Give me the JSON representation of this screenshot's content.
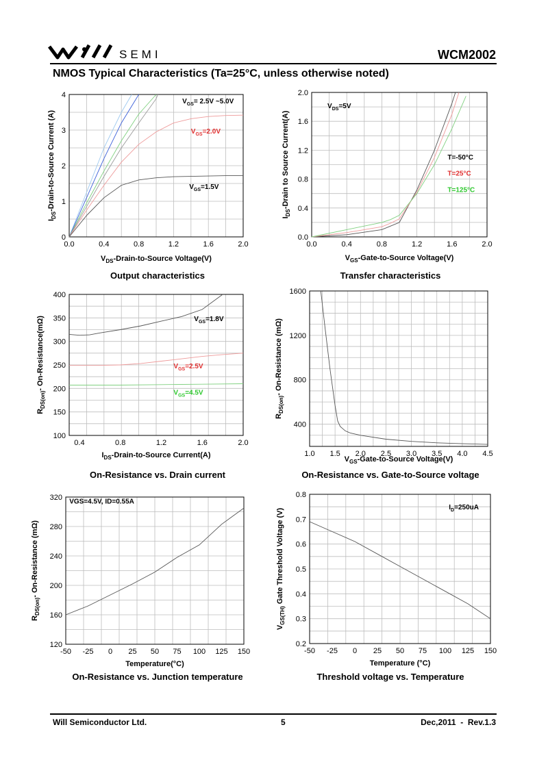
{
  "header": {
    "logo_text": "SEMI",
    "part_number": "WCM2002",
    "section_title": "NMOS Typical Characteristics (Ta=25°C, unless otherwise noted)"
  },
  "footer": {
    "company": "Will Semiconductor Ltd.",
    "page": "5",
    "date_rev": "Dec,2011  -  Rev.1.3"
  },
  "chart_data": [
    {
      "id": "c1",
      "type": "line",
      "title": "Output characteristics",
      "xlabel": "V_DS-Drain-to-Source Voltage(V)",
      "ylabel": "I_DS-Drain-to-Source Current (A)",
      "xlim": [
        0,
        2.0
      ],
      "ylim": [
        0,
        4
      ],
      "xticks": [
        0,
        0.4,
        0.8,
        1.2,
        1.6,
        2.0
      ],
      "xtick_labels": [
        "0.0",
        "0.4",
        "0.8",
        "1.2",
        "1.6",
        "2.0"
      ],
      "yticks": [
        0,
        1,
        2,
        3,
        4
      ],
      "ytick_labels": [
        "0",
        "1",
        "2",
        "3",
        "4"
      ],
      "grid_x": 10,
      "grid_y": 8,
      "series": [
        {
          "color": "#9ec9f0",
          "x": [
            0,
            0.2,
            0.4,
            0.6,
            0.72
          ],
          "y": [
            0,
            1.25,
            2.5,
            3.5,
            4.0
          ]
        },
        {
          "color": "#3a5fd9",
          "x": [
            0,
            0.2,
            0.4,
            0.6,
            0.8
          ],
          "y": [
            0,
            1.1,
            2.2,
            3.2,
            4.0
          ]
        },
        {
          "color": "#7fd07f",
          "x": [
            0,
            0.2,
            0.4,
            0.6,
            0.8,
            1.0
          ],
          "y": [
            0,
            0.95,
            1.85,
            2.7,
            3.45,
            4.0
          ]
        },
        {
          "color": "#9a9a9a",
          "x": [
            0,
            0.2,
            0.4,
            0.6,
            0.8,
            1.0,
            1.02
          ],
          "y": [
            0,
            0.85,
            1.7,
            2.5,
            3.2,
            3.88,
            4.0
          ]
        },
        {
          "color": "#ee9a9a",
          "x": [
            0,
            0.2,
            0.4,
            0.6,
            0.8,
            1.0,
            1.2,
            1.4,
            1.6,
            1.8,
            2.0
          ],
          "y": [
            0,
            0.75,
            1.45,
            2.1,
            2.6,
            2.95,
            3.2,
            3.32,
            3.38,
            3.41,
            3.42
          ]
        },
        {
          "color": "#555555",
          "x": [
            0,
            0.2,
            0.4,
            0.6,
            0.8,
            1.0,
            1.2,
            1.4,
            1.6,
            1.8,
            2.0
          ],
          "y": [
            0,
            0.6,
            1.1,
            1.45,
            1.6,
            1.66,
            1.69,
            1.7,
            1.71,
            1.72,
            1.72
          ]
        }
      ],
      "annotations": [
        {
          "prefix": "V",
          "sub": "GS",
          "suffix": "= 2.5V ~5.0V",
          "x": 1.3,
          "y": 3.75,
          "color": "#000000"
        },
        {
          "prefix": "V",
          "sub": "GS",
          "suffix": "=2.0V",
          "x": 1.4,
          "y": 2.9,
          "color": "#e03030"
        },
        {
          "prefix": "V",
          "sub": "GS",
          "suffix": "=1.5V",
          "x": 1.38,
          "y": 1.35,
          "color": "#000000"
        }
      ]
    },
    {
      "id": "c2",
      "type": "line",
      "title": "Transfer characteristics",
      "xlabel": "V_GS-Gate-to-Source Voltage(V)",
      "ylabel": "I_DS-Drain to Source Current(A)",
      "xlim": [
        0,
        2.0
      ],
      "ylim": [
        0,
        2.0
      ],
      "xticks": [
        0,
        0.4,
        0.8,
        1.2,
        1.6,
        2.0
      ],
      "xtick_labels": [
        "0.0",
        "0.4",
        "0.8",
        "1.2",
        "1.6",
        "2.0"
      ],
      "yticks": [
        0,
        0.4,
        0.8,
        1.2,
        1.6,
        2.0
      ],
      "ytick_labels": [
        "0.0",
        "0.4",
        "0.8",
        "1.2",
        "1.6",
        "2.0"
      ],
      "grid_x": 10,
      "grid_y": 10,
      "series": [
        {
          "name": "T=-50°C",
          "color": "#555555",
          "x": [
            0,
            0.4,
            0.8,
            0.9,
            1.0,
            1.2,
            1.4,
            1.6,
            1.64
          ],
          "y": [
            0,
            0.03,
            0.1,
            0.15,
            0.2,
            0.65,
            1.2,
            1.85,
            2.0
          ]
        },
        {
          "name": "T=25°C",
          "color": "#ee9a9a",
          "x": [
            0,
            0.4,
            0.8,
            0.9,
            1.0,
            1.2,
            1.4,
            1.6,
            1.68
          ],
          "y": [
            0,
            0.06,
            0.14,
            0.19,
            0.25,
            0.62,
            1.1,
            1.7,
            2.0
          ]
        },
        {
          "name": "T=125°C",
          "color": "#7fd07f",
          "x": [
            0,
            0.4,
            0.8,
            0.9,
            1.0,
            1.2,
            1.4,
            1.6,
            1.76
          ],
          "y": [
            0,
            0.1,
            0.2,
            0.24,
            0.3,
            0.6,
            1.0,
            1.5,
            1.95
          ]
        }
      ],
      "annotations": [
        {
          "prefix": "V",
          "sub": "DS",
          "suffix": "=5V",
          "x": 0.18,
          "y": 1.78,
          "color": "#000000"
        },
        {
          "prefix": "T=-50",
          "sub": "",
          "suffix": "°C",
          "x": 1.55,
          "y": 1.07,
          "color": "#000000"
        },
        {
          "prefix": "T=25",
          "sub": "",
          "suffix": "°C",
          "x": 1.55,
          "y": 0.85,
          "color": "#e03030"
        },
        {
          "prefix": "T=125",
          "sub": "",
          "suffix": "°C",
          "x": 1.55,
          "y": 0.62,
          "color": "#2ec82e"
        }
      ]
    },
    {
      "id": "c3",
      "type": "line",
      "title": "On-Resistance vs. Drain current",
      "xlabel": "I_DS-Drain-to-Source Current(A)",
      "ylabel": "R_DS(on)- On-Resistance(mΩ)",
      "xlim": [
        0.3,
        2.0
      ],
      "ylim": [
        100,
        400
      ],
      "xticks": [
        0.4,
        0.8,
        1.2,
        1.6,
        2.0
      ],
      "xtick_labels": [
        "0.4",
        "0.8",
        "1.2",
        "1.6",
        "2.0"
      ],
      "yticks": [
        100,
        150,
        200,
        250,
        300,
        350,
        400
      ],
      "ytick_labels": [
        "100",
        "150",
        "200",
        "250",
        "300",
        "350",
        "400"
      ],
      "grid_x": 10,
      "grid_y": 12,
      "series": [
        {
          "name": "V_GS=1.8V",
          "color": "#555555",
          "x": [
            0.3,
            0.4,
            0.5,
            0.6,
            0.8,
            1.0,
            1.2,
            1.4,
            1.6,
            1.8
          ],
          "y": [
            315,
            313,
            314,
            318,
            325,
            333,
            343,
            353,
            368,
            400
          ]
        },
        {
          "name": "V_GS=2.5V",
          "color": "#ee9a9a",
          "x": [
            0.3,
            0.6,
            0.8,
            1.0,
            1.2,
            1.4,
            1.6,
            1.8,
            2.0
          ],
          "y": [
            249,
            249,
            250,
            253,
            258,
            263,
            268,
            272,
            275
          ]
        },
        {
          "name": "V_GS=4.5V",
          "color": "#7fd07f",
          "x": [
            0.3,
            0.8,
            1.2,
            1.6,
            2.0
          ],
          "y": [
            207,
            207,
            208,
            209,
            210
          ]
        }
      ],
      "annotations": [
        {
          "prefix": "V",
          "sub": "GS",
          "suffix": "=1.8V",
          "x": 1.52,
          "y": 343,
          "color": "#000000"
        },
        {
          "prefix": "V",
          "sub": "GS",
          "suffix": "=2.5V",
          "x": 1.32,
          "y": 243,
          "color": "#e03030"
        },
        {
          "prefix": "V",
          "sub": "GS",
          "suffix": "=4.5V",
          "x": 1.32,
          "y": 187,
          "color": "#2ec82e"
        }
      ]
    },
    {
      "id": "c4",
      "type": "line",
      "title": "On-Resistance vs. Gate-to-Source voltage",
      "xlabel": "V_GS-Gate-to-Source Voltage(V)",
      "ylabel": "R_DS(on)- On-Resistance (mΩ)",
      "xlim": [
        1.0,
        4.5
      ],
      "ylim": [
        200,
        1600
      ],
      "xticks": [
        1.0,
        1.5,
        2.0,
        2.5,
        3.0,
        3.5,
        4.0,
        4.5
      ],
      "xtick_labels": [
        "1.0",
        "1.5",
        "2.0",
        "2.5",
        "3.0",
        "3.5",
        "4.0",
        "4.5"
      ],
      "yticks": [
        400,
        800,
        1200,
        1600
      ],
      "ytick_labels": [
        "400",
        "800",
        "1200",
        "1600"
      ],
      "grid_x": 14,
      "grid_y": 14,
      "series": [
        {
          "color": "#555555",
          "x": [
            1.22,
            1.3,
            1.4,
            1.5,
            1.55,
            1.6,
            1.7,
            1.8,
            2.0,
            2.5,
            3.0,
            3.5,
            4.0,
            4.5
          ],
          "y": [
            1600,
            1280,
            900,
            570,
            430,
            380,
            340,
            320,
            300,
            265,
            245,
            232,
            224,
            218
          ]
        }
      ],
      "annotations": []
    },
    {
      "id": "c5",
      "type": "line",
      "title": "On-Resistance vs. Junction temperature",
      "xlabel": "Temperature(°C)",
      "ylabel": "R_DS(on)- On-Resistance (mΩ)",
      "xlim": [
        -50,
        150
      ],
      "ylim": [
        120,
        320
      ],
      "xticks": [
        -50,
        -25,
        0,
        25,
        50,
        75,
        100,
        125,
        150
      ],
      "xtick_labels": [
        "-50",
        "-25",
        "0",
        "25",
        "50",
        "75",
        "100",
        "125",
        "150"
      ],
      "yticks": [
        120,
        160,
        200,
        240,
        280,
        320
      ],
      "ytick_labels": [
        "120",
        "160",
        "200",
        "240",
        "280",
        "320"
      ],
      "grid_x": 10,
      "grid_y": 10,
      "series": [
        {
          "color": "#555555",
          "x": [
            -50,
            -25,
            0,
            25,
            50,
            75,
            100,
            125,
            150
          ],
          "y": [
            160,
            172,
            187,
            202,
            218,
            238,
            255,
            283,
            305
          ]
        }
      ],
      "annotations": [
        {
          "prefix": "VGS=4.5V,  ID=0.55A",
          "sub": "",
          "suffix": "",
          "x": -46,
          "y": 311,
          "color": "#000000"
        }
      ]
    },
    {
      "id": "c6",
      "type": "line",
      "title": "Threshold voltage vs. Temperature",
      "xlabel": "Temperature (°C)",
      "ylabel": "V_GS(TH) Gate Threshold Voltage (V)",
      "xlim": [
        -50,
        150
      ],
      "ylim": [
        0.2,
        0.8
      ],
      "xticks": [
        -50,
        -25,
        0,
        25,
        50,
        75,
        100,
        125,
        150
      ],
      "xtick_labels": [
        "-50",
        "-25",
        "0",
        "25",
        "50",
        "75",
        "100",
        "125",
        "150"
      ],
      "yticks": [
        0.2,
        0.3,
        0.4,
        0.5,
        0.6,
        0.7,
        0.8
      ],
      "ytick_labels": [
        "0.2",
        "0.3",
        "0.4",
        "0.5",
        "0.6",
        "0.7",
        "0.8"
      ],
      "grid_x": 10,
      "grid_y": 12,
      "series": [
        {
          "color": "#555555",
          "x": [
            -50,
            -25,
            0,
            25,
            50,
            75,
            100,
            125,
            150
          ],
          "y": [
            0.69,
            0.65,
            0.61,
            0.56,
            0.51,
            0.46,
            0.41,
            0.36,
            0.3
          ]
        }
      ],
      "annotations": [
        {
          "prefix": "I",
          "sub": "D",
          "suffix": "=250uA",
          "x": 104,
          "y": 0.74,
          "color": "#000000"
        }
      ]
    }
  ]
}
